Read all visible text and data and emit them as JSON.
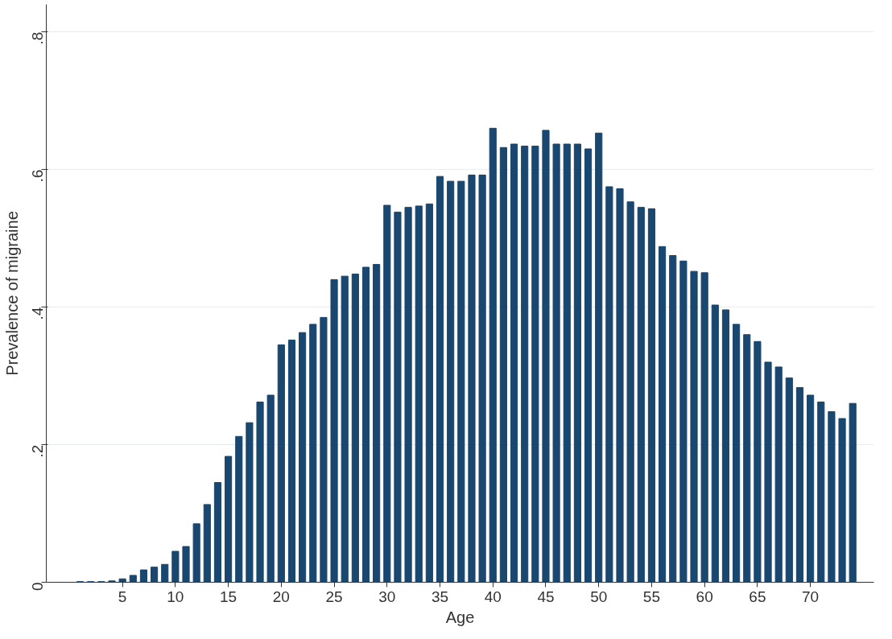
{
  "chart_data": {
    "type": "bar",
    "xlabel": "Age",
    "ylabel": "Prevalence of migraine",
    "x": [
      1,
      2,
      3,
      4,
      5,
      6,
      7,
      8,
      9,
      10,
      11,
      12,
      13,
      14,
      15,
      16,
      17,
      18,
      19,
      20,
      21,
      22,
      23,
      24,
      25,
      26,
      27,
      28,
      29,
      30,
      31,
      32,
      33,
      34,
      35,
      36,
      37,
      38,
      39,
      40,
      41,
      42,
      43,
      44,
      45,
      46,
      47,
      48,
      49,
      50,
      51,
      52,
      53,
      54,
      55,
      56,
      57,
      58,
      59,
      60,
      61,
      62,
      63,
      64,
      65,
      66,
      67,
      68,
      69,
      70,
      71,
      72,
      73,
      74
    ],
    "values": [
      0.001,
      0.001,
      0.001,
      0.002,
      0.005,
      0.01,
      0.018,
      0.022,
      0.026,
      0.045,
      0.052,
      0.085,
      0.113,
      0.145,
      0.183,
      0.212,
      0.232,
      0.262,
      0.272,
      0.345,
      0.352,
      0.363,
      0.375,
      0.385,
      0.44,
      0.445,
      0.448,
      0.458,
      0.462,
      0.548,
      0.538,
      0.545,
      0.547,
      0.55,
      0.59,
      0.583,
      0.583,
      0.592,
      0.592,
      0.66,
      0.632,
      0.637,
      0.634,
      0.634,
      0.657,
      0.637,
      0.637,
      0.637,
      0.63,
      0.653,
      0.575,
      0.572,
      0.553,
      0.545,
      0.543,
      0.488,
      0.475,
      0.467,
      0.452,
      0.45,
      0.403,
      0.396,
      0.375,
      0.36,
      0.35,
      0.32,
      0.313,
      0.297,
      0.283,
      0.272,
      0.262,
      0.248,
      0.238,
      0.26
    ],
    "color": "#1a476f",
    "xlim": [
      -2.2,
      76
    ],
    "xticks": [
      5,
      10,
      15,
      20,
      25,
      30,
      35,
      40,
      45,
      50,
      55,
      60,
      65,
      70
    ],
    "ylim": [
      0,
      0.84
    ],
    "yticks": [
      {
        "value": 0,
        "label": "0"
      },
      {
        "value": 0.2,
        "label": ".2"
      },
      {
        "value": 0.4,
        "label": ".4"
      },
      {
        "value": 0.6,
        "label": ".6"
      },
      {
        "value": 0.8,
        "label": ".8"
      }
    ],
    "grid": "y"
  }
}
